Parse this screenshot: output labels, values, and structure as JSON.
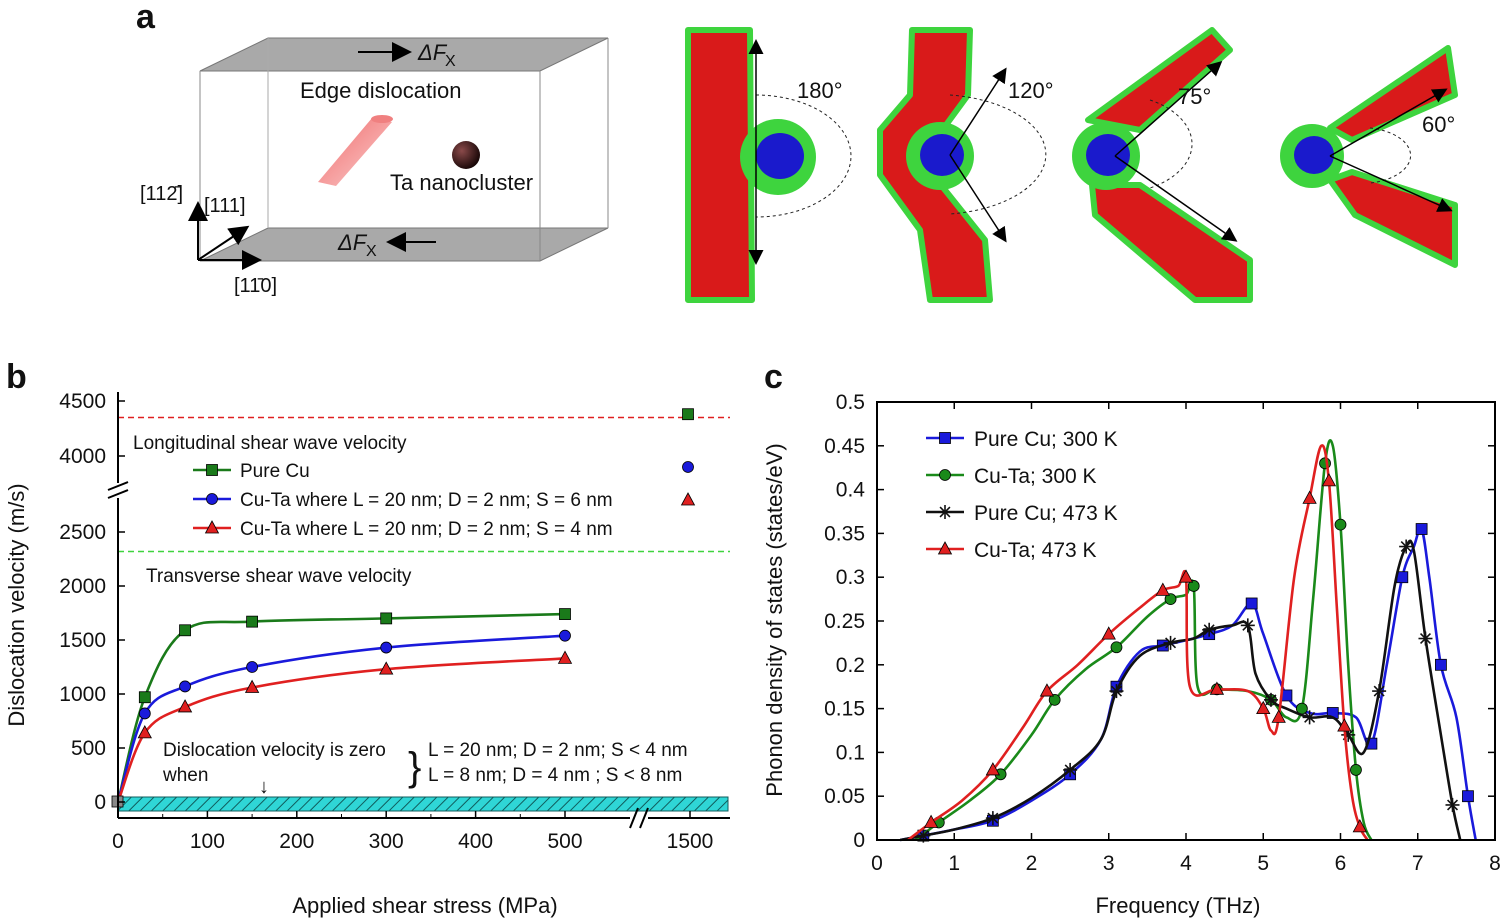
{
  "figure": {
    "panel_a": {
      "letter": "a",
      "force_top": "ΔF",
      "force_top_sub": "X",
      "force_bottom": "ΔF",
      "force_bottom_sub": "X",
      "label_dislocation": "Edge dislocation",
      "label_cluster": "Ta nanocluster",
      "axis_vertical": "[112̄]",
      "axis_depth": "[111]",
      "axis_horizontal": "[11̄0]",
      "angles": [
        "180°",
        "120°",
        "75°",
        "60°"
      ],
      "colors": {
        "dislocation": "#d91a1a",
        "boundary": "#3ed43e",
        "cluster": "#1a1acc"
      }
    },
    "panel_b": {
      "letter": "b",
      "longitudinal_label": "Longitudinal shear wave velocity",
      "transverse_label": "Transverse shear wave velocity",
      "zero_note_line1": "Dislocation velocity is zero",
      "zero_note_line2": "when",
      "zero_cond_1": "L = 20 nm; D = 2 nm; S < 4 nm",
      "zero_cond_2": "L = 8 nm; D = 4 nm ; S < 8 nm",
      "zero_arrow": "↓"
    },
    "panel_c": {
      "letter": "c"
    }
  },
  "chart_data": [
    {
      "type": "line",
      "title": "",
      "xlabel": "Applied shear stress (MPa)",
      "ylabel": "Dislocation velocity (m/s)",
      "x_ticks": [
        "0",
        "100",
        "200",
        "300",
        "400",
        "500",
        "1500"
      ],
      "y_ticks": [
        "0",
        "500",
        "1000",
        "1500",
        "2000",
        "2500",
        "4000",
        "4500"
      ],
      "xlim": [
        0,
        1500
      ],
      "ylim": [
        0,
        4500
      ],
      "axis_break_y": [
        2700,
        3800
      ],
      "axis_break_x": [
        580,
        1400
      ],
      "reference_lines": [
        {
          "name": "Longitudinal shear wave velocity",
          "value": 4350,
          "color": "#e02020"
        },
        {
          "name": "Transverse shear wave velocity",
          "value": 2320,
          "color": "#3ed43e"
        }
      ],
      "series": [
        {
          "name": "Pure Cu",
          "color": "#1a7a1a",
          "marker": "square",
          "x": [
            0,
            30,
            75,
            150,
            300,
            500,
            1500
          ],
          "y": [
            0,
            970,
            1590,
            1670,
            1700,
            1740,
            4380
          ]
        },
        {
          "name": "Cu-Ta where L = 20 nm; D = 2 nm; S = 6 nm",
          "color": "#1a1adb",
          "marker": "circle",
          "x": [
            0,
            30,
            75,
            150,
            300,
            500,
            1500
          ],
          "y": [
            0,
            820,
            1070,
            1250,
            1430,
            1540,
            3900
          ]
        },
        {
          "name": "Cu-Ta where L = 20 nm; D = 2 nm; S = 4 nm",
          "color": "#e02020",
          "marker": "triangle",
          "x": [
            0,
            30,
            75,
            150,
            300,
            500,
            1500
          ],
          "y": [
            0,
            640,
            880,
            1060,
            1230,
            1330,
            3600
          ]
        }
      ]
    },
    {
      "type": "line",
      "title": "",
      "xlabel": "Frequency (THz)",
      "ylabel": "Phonon density of states (states/eV)",
      "x_ticks": [
        "0",
        "1",
        "2",
        "3",
        "4",
        "5",
        "6",
        "7",
        "8"
      ],
      "y_ticks": [
        "0",
        "0.05",
        "0.1",
        "0.15",
        "0.2",
        "0.25",
        "0.3",
        "0.35",
        "0.4",
        "0.45",
        "0.5"
      ],
      "xlim": [
        0,
        8
      ],
      "ylim": [
        0,
        0.5
      ],
      "series": [
        {
          "name": "Pure Cu; 300 K",
          "color": "#1a1adb",
          "marker": "square",
          "x": [
            0.3,
            0.6,
            1.0,
            1.5,
            2.0,
            2.5,
            2.9,
            3.1,
            3.4,
            3.7,
            4.0,
            4.3,
            4.6,
            4.85,
            5.0,
            5.3,
            5.6,
            5.9,
            6.2,
            6.4,
            6.6,
            6.8,
            6.95,
            7.05,
            7.15,
            7.3,
            7.5,
            7.65,
            7.75
          ],
          "y": [
            0,
            0.005,
            0.012,
            0.022,
            0.045,
            0.075,
            0.115,
            0.175,
            0.215,
            0.222,
            0.228,
            0.235,
            0.245,
            0.27,
            0.235,
            0.165,
            0.145,
            0.145,
            0.14,
            0.11,
            0.2,
            0.3,
            0.335,
            0.355,
            0.3,
            0.2,
            0.14,
            0.05,
            0
          ]
        },
        {
          "name": "Cu-Ta; 300 K",
          "color": "#1a8a1a",
          "marker": "circle",
          "x": [
            0.5,
            0.8,
            1.2,
            1.6,
            2.0,
            2.3,
            2.7,
            3.1,
            3.5,
            3.8,
            4.0,
            4.1,
            4.15,
            4.4,
            4.8,
            5.1,
            5.3,
            5.5,
            5.65,
            5.8,
            5.9,
            6.0,
            6.1,
            6.2,
            6.3,
            6.4
          ],
          "y": [
            0,
            0.02,
            0.045,
            0.075,
            0.12,
            0.16,
            0.195,
            0.22,
            0.255,
            0.275,
            0.28,
            0.29,
            0.175,
            0.172,
            0.17,
            0.16,
            0.14,
            0.15,
            0.28,
            0.43,
            0.45,
            0.36,
            0.2,
            0.08,
            0.02,
            0
          ]
        },
        {
          "name": "Pure Cu; 473 K",
          "color": "#111111",
          "marker": "star",
          "x": [
            0.3,
            0.6,
            1.0,
            1.5,
            2.0,
            2.5,
            2.9,
            3.1,
            3.4,
            3.8,
            4.1,
            4.3,
            4.6,
            4.8,
            4.9,
            5.1,
            5.3,
            5.6,
            5.9,
            6.1,
            6.3,
            6.5,
            6.7,
            6.85,
            6.95,
            7.1,
            7.3,
            7.45,
            7.55
          ],
          "y": [
            0,
            0.005,
            0.012,
            0.025,
            0.048,
            0.08,
            0.115,
            0.17,
            0.21,
            0.225,
            0.23,
            0.24,
            0.245,
            0.245,
            0.19,
            0.16,
            0.15,
            0.14,
            0.14,
            0.12,
            0.1,
            0.17,
            0.29,
            0.335,
            0.33,
            0.23,
            0.12,
            0.04,
            0
          ]
        },
        {
          "name": "Cu-Ta; 473 K",
          "color": "#e02020",
          "marker": "triangle",
          "x": [
            0.4,
            0.7,
            1.1,
            1.5,
            1.9,
            2.2,
            2.6,
            3.0,
            3.4,
            3.7,
            3.9,
            4.0,
            4.05,
            4.4,
            4.8,
            5.0,
            5.1,
            5.2,
            5.4,
            5.6,
            5.75,
            5.85,
            5.95,
            6.05,
            6.15,
            6.25,
            6.35
          ],
          "y": [
            0,
            0.02,
            0.045,
            0.08,
            0.13,
            0.17,
            0.2,
            0.235,
            0.265,
            0.285,
            0.29,
            0.3,
            0.175,
            0.172,
            0.17,
            0.15,
            0.125,
            0.14,
            0.3,
            0.39,
            0.45,
            0.41,
            0.27,
            0.13,
            0.05,
            0.015,
            0
          ]
        }
      ]
    }
  ]
}
